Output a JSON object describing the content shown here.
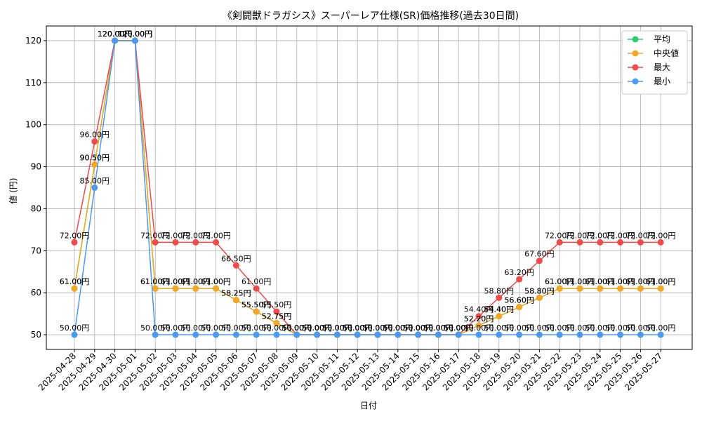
{
  "chart_data": {
    "type": "line",
    "title": "《剣闘獣ドラガシス》スーパーレア仕様(SR)価格推移(過去30日間)",
    "xlabel": "日付",
    "ylabel": "値 (円)",
    "ylim": [
      46.5,
      123.5
    ],
    "yticks": [
      50,
      60,
      70,
      80,
      90,
      100,
      110,
      120
    ],
    "grid": true,
    "legend_position": "top-right",
    "value_suffix": "円",
    "categories": [
      "2025-04-28",
      "2025-04-29",
      "2025-04-30",
      "2025-05-01",
      "2025-05-02",
      "2025-05-03",
      "2025-05-04",
      "2025-05-05",
      "2025-05-06",
      "2025-05-07",
      "2025-05-08",
      "2025-05-09",
      "2025-05-10",
      "2025-05-11",
      "2025-05-12",
      "2025-05-13",
      "2025-05-14",
      "2025-05-15",
      "2025-05-16",
      "2025-05-17",
      "2025-05-18",
      "2025-05-19",
      "2025-05-20",
      "2025-05-21",
      "2025-05-22",
      "2025-05-23",
      "2025-05-24",
      "2025-05-25",
      "2025-05-26",
      "2025-05-27"
    ],
    "series": [
      {
        "name": "平均",
        "color": "#2ecc71",
        "values": [
          61,
          90.5,
          120,
          120,
          61,
          61,
          61,
          61,
          58.25,
          55.5,
          52.75,
          50,
          50,
          50,
          50,
          50,
          50,
          50,
          50,
          50,
          52.2,
          54.4,
          56.6,
          58.8,
          61,
          61,
          61,
          61,
          61,
          61
        ]
      },
      {
        "name": "中央値",
        "color": "#f5a623",
        "values": [
          61,
          90.5,
          120,
          120,
          61,
          61,
          61,
          61,
          58.25,
          55.5,
          52.75,
          50,
          50,
          50,
          50,
          50,
          50,
          50,
          50,
          50,
          52.2,
          54.4,
          56.6,
          58.8,
          61,
          61,
          61,
          61,
          61,
          61
        ]
      },
      {
        "name": "最大",
        "color": "#f04a4a",
        "values": [
          72,
          96,
          120,
          120,
          72,
          72,
          72,
          72,
          66.5,
          61,
          55.5,
          50,
          50,
          50,
          50,
          50,
          50,
          50,
          50,
          50,
          54.4,
          58.8,
          63.2,
          67.6,
          72,
          72,
          72,
          72,
          72,
          72
        ]
      },
      {
        "name": "最小",
        "color": "#4a9af0",
        "values": [
          50,
          85,
          120,
          120,
          50,
          50,
          50,
          50,
          50,
          50,
          50,
          50,
          50,
          50,
          50,
          50,
          50,
          50,
          50,
          50,
          50,
          50,
          50,
          50,
          50,
          50,
          50,
          50,
          50,
          50
        ]
      }
    ]
  }
}
